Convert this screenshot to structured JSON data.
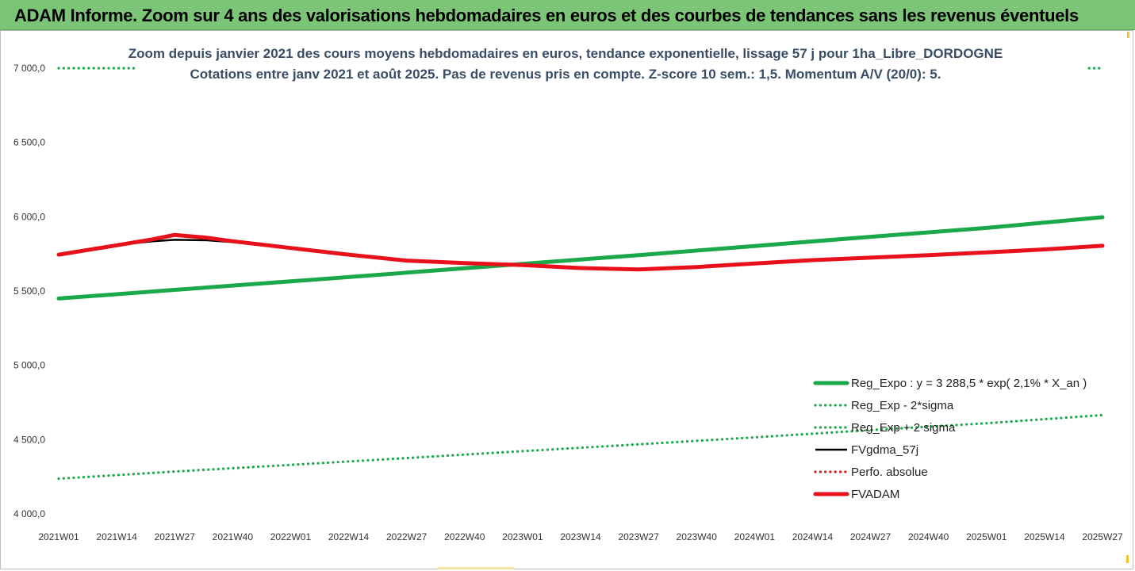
{
  "banner": {
    "title": "ADAM Informe. Zoom sur 4 ans des valorisations hebdomadaires en euros et des courbes de tendances sans les revenus éventuels"
  },
  "colors": {
    "banner_bg": "#7cc576",
    "reg_expo": "#1aa84a",
    "sigma": "#1aa84a",
    "fvgdma": "#000000",
    "perfo": "#d62020",
    "fvadam": "#e8101a",
    "title_text": "#3a4d66"
  },
  "chart_data": {
    "type": "line",
    "title_lines": [
      "Zoom depuis janvier 2021 des cours moyens hebdomadaires en euros, tendance exponentielle, lissage 57 j pour 1ha_Libre_DORDOGNE",
      "Cotations entre janv 2021 et août 2025.  Pas de revenus pris en compte. Z-score 10 sem.: 1,5. Momentum A/V (20/0): 5."
    ],
    "x_ticks": [
      "2021W01",
      "2021W14",
      "2021W27",
      "2021W40",
      "2022W01",
      "2022W14",
      "2022W27",
      "2022W40",
      "2023W01",
      "2023W14",
      "2023W27",
      "2023W40",
      "2024W01",
      "2024W14",
      "2024W27",
      "2024W40",
      "2025W01",
      "2025W14",
      "2025W27"
    ],
    "y_ticks": [
      "4 000,0",
      "4 500,0",
      "5 000,0",
      "5 500,0",
      "6 000,0",
      "6 500,0",
      "7 000,0"
    ],
    "ylim": [
      4000,
      7000
    ],
    "grid": false,
    "legend_position": "bottom-right",
    "series": [
      {
        "name": "Reg_Expo : y = 3 288,5 * exp( 2,1% *  X_an )",
        "style": "solid-thick",
        "color": "#1aa84a",
        "x": [
          "2021W01",
          "2021W27",
          "2022W01",
          "2022W27",
          "2023W01",
          "2023W27",
          "2024W01",
          "2024W27",
          "2025W01",
          "2025W27"
        ],
        "y": [
          5450,
          5508,
          5565,
          5624,
          5683,
          5742,
          5803,
          5865,
          5925,
          5997
        ]
      },
      {
        "name": "Reg_Exp - 2*sigma",
        "style": "dotted",
        "color": "#1aa84a",
        "x": [
          "2021W01",
          "2021W27",
          "2022W01",
          "2022W27",
          "2023W01",
          "2023W27",
          "2024W01",
          "2024W27",
          "2025W01",
          "2025W27"
        ],
        "y": [
          4237,
          4285,
          4330,
          4376,
          4422,
          4468,
          4515,
          4564,
          4610,
          4665
        ]
      },
      {
        "name": "Reg_Exp + 2 sigma",
        "style": "dotted",
        "color": "#1aa84a",
        "x": [
          "2021W01",
          "2025W27"
        ],
        "y": [
          7000,
          7000
        ],
        "visible_segments": [
          [
            "2021W01",
            "2021W18"
          ],
          [
            "2025W24",
            "2025W27"
          ]
        ]
      },
      {
        "name": "FVgdma_57j",
        "style": "solid",
        "color": "#000000",
        "x": [
          "2021W01",
          "2021W14",
          "2021W22",
          "2021W27",
          "2021W34",
          "2021W40",
          "2022W01",
          "2022W14",
          "2022W27",
          "2022W40",
          "2023W01",
          "2023W14",
          "2023W27",
          "2023W40",
          "2024W01",
          "2024W14",
          "2024W27",
          "2024W40",
          "2025W01",
          "2025W14",
          "2025W27"
        ],
        "y": [
          5745,
          5810,
          5835,
          5845,
          5842,
          5830,
          5790,
          5745,
          5708,
          5688,
          5675,
          5658,
          5648,
          5662,
          5685,
          5708,
          5725,
          5742,
          5760,
          5780,
          5805
        ]
      },
      {
        "name": "Perfo. absolue",
        "style": "dotted",
        "color": "#d62020",
        "x": [
          "2021W01",
          "2021W14",
          "2021W27",
          "2021W40",
          "2022W01",
          "2022W14",
          "2022W27",
          "2022W40",
          "2023W01",
          "2023W14",
          "2023W27",
          "2023W40",
          "2024W01",
          "2024W14",
          "2024W27",
          "2024W40",
          "2025W01",
          "2025W14",
          "2025W27"
        ],
        "y": [
          5745,
          5808,
          5878,
          5835,
          5790,
          5745,
          5705,
          5688,
          5675,
          5655,
          5645,
          5662,
          5685,
          5708,
          5725,
          5742,
          5760,
          5780,
          5805
        ]
      },
      {
        "name": "FVADAM",
        "style": "solid-thick",
        "color": "#e8101a",
        "x": [
          "2021W01",
          "2021W14",
          "2021W22",
          "2021W27",
          "2021W34",
          "2021W40",
          "2022W01",
          "2022W14",
          "2022W27",
          "2022W40",
          "2023W01",
          "2023W14",
          "2023W27",
          "2023W40",
          "2024W01",
          "2024W14",
          "2024W27",
          "2024W40",
          "2025W01",
          "2025W14",
          "2025W27"
        ],
        "y": [
          5745,
          5808,
          5848,
          5878,
          5860,
          5835,
          5790,
          5745,
          5705,
          5688,
          5675,
          5655,
          5645,
          5662,
          5685,
          5708,
          5725,
          5742,
          5760,
          5780,
          5805
        ]
      }
    ]
  }
}
